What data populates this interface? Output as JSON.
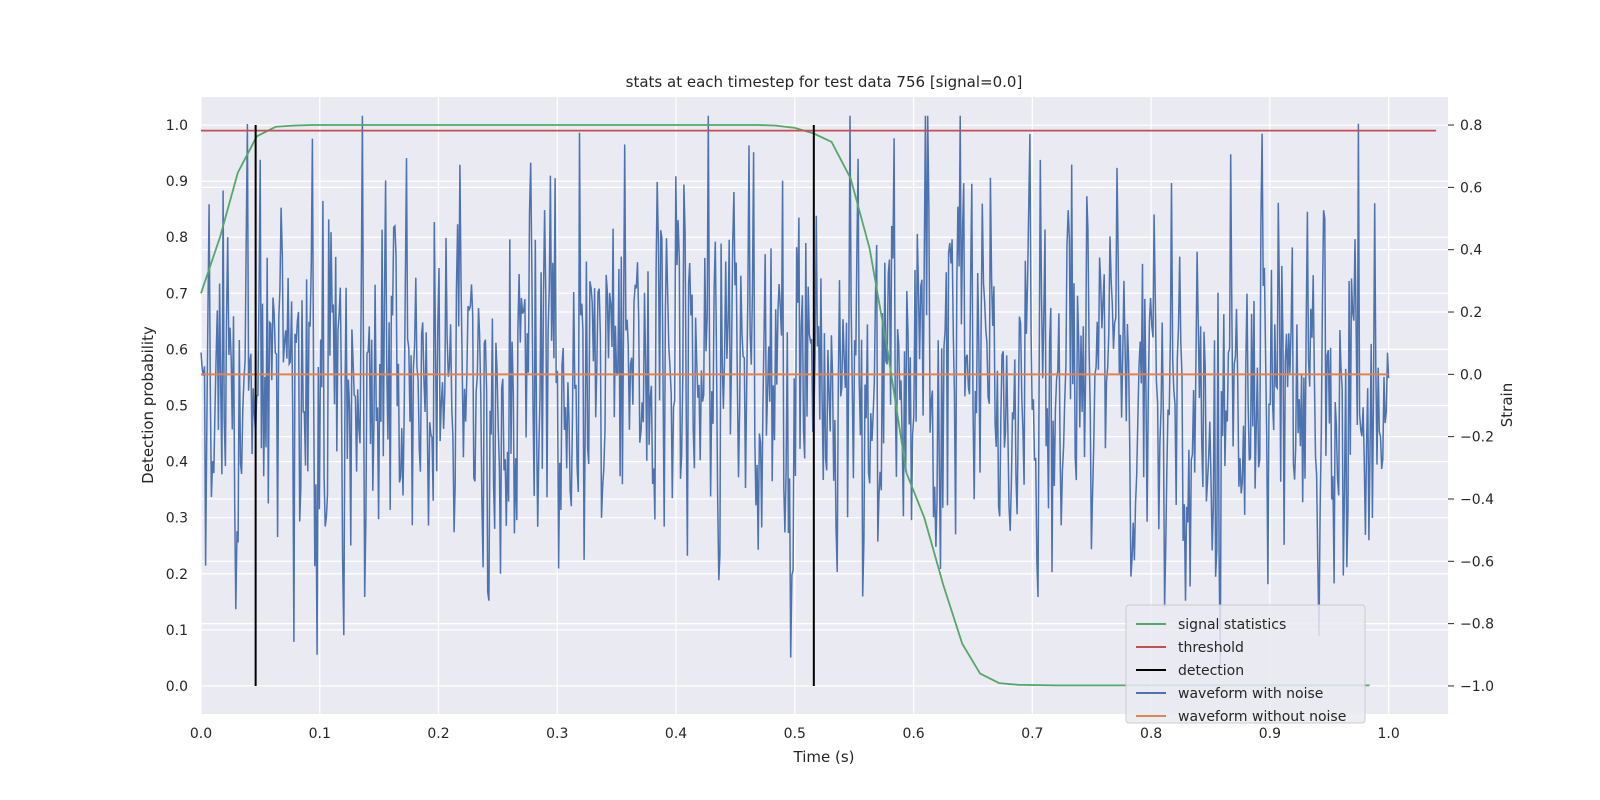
{
  "chart_data": {
    "type": "line",
    "title": "stats at each timestep for test data 756 [signal=0.0]",
    "xlabel": "Time (s)",
    "ylabel_left": "Detection probability",
    "ylabel_right": "Strain",
    "xlim": [
      0.0,
      1.05
    ],
    "ylim_left": [
      -0.05,
      1.05
    ],
    "ylim_right": [
      -1.09,
      0.89
    ],
    "x_ticks": [
      "0.0",
      "0.1",
      "0.2",
      "0.3",
      "0.4",
      "0.5",
      "0.6",
      "0.7",
      "0.8",
      "0.9",
      "1.0"
    ],
    "y_left_ticks": [
      "0.0",
      "0.1",
      "0.2",
      "0.3",
      "0.4",
      "0.5",
      "0.6",
      "0.7",
      "0.8",
      "0.9",
      "1.0"
    ],
    "y_right_ticks": [
      "−1.0",
      "−0.8",
      "−0.6",
      "−0.4",
      "−0.2",
      "0.0",
      "0.2",
      "0.4",
      "0.6",
      "0.8"
    ],
    "grid": true,
    "legend_position": "lower-right",
    "series": [
      {
        "name": "signal statistics",
        "color": "#55a868",
        "axis": "left",
        "x": [
          0.0,
          0.016,
          0.031,
          0.047,
          0.063,
          0.078,
          0.094,
          0.2,
          0.3,
          0.4,
          0.469,
          0.484,
          0.5,
          0.516,
          0.531,
          0.547,
          0.563,
          0.578,
          0.594,
          0.609,
          0.625,
          0.641,
          0.656,
          0.672,
          0.688,
          0.72,
          0.8,
          0.9,
          0.984
        ],
        "y": [
          0.7,
          0.8,
          0.915,
          0.98,
          0.997,
          0.999,
          1.0,
          1.0,
          1.0,
          1.0,
          1.0,
          0.999,
          0.995,
          0.985,
          0.97,
          0.905,
          0.78,
          0.6,
          0.38,
          0.3,
          0.18,
          0.075,
          0.022,
          0.005,
          0.002,
          0.001,
          0.001,
          0.001,
          0.001
        ]
      },
      {
        "name": "threshold",
        "color": "#c44e52",
        "axis": "left",
        "x": [
          0.0,
          1.04
        ],
        "y": [
          0.99,
          0.99
        ]
      },
      {
        "name": "detection",
        "color": "#000000",
        "axis": "left",
        "segments": [
          {
            "x": 0.046,
            "y": [
              0.0,
              1.0
            ]
          },
          {
            "x": 0.516,
            "y": [
              0.0,
              1.0
            ]
          }
        ]
      },
      {
        "name": "waveform with noise",
        "color": "#4c72b0",
        "axis": "right",
        "x_range": [
          0.0,
          1.0
        ],
        "samples": 1024,
        "y_approx_range": [
          -0.94,
          0.83
        ],
        "y_approx_std": 0.3
      },
      {
        "name": "waveform without noise",
        "color": "#dd8452",
        "axis": "right",
        "x": [
          0.0,
          1.0
        ],
        "y": [
          0.0,
          0.0
        ]
      }
    ]
  }
}
